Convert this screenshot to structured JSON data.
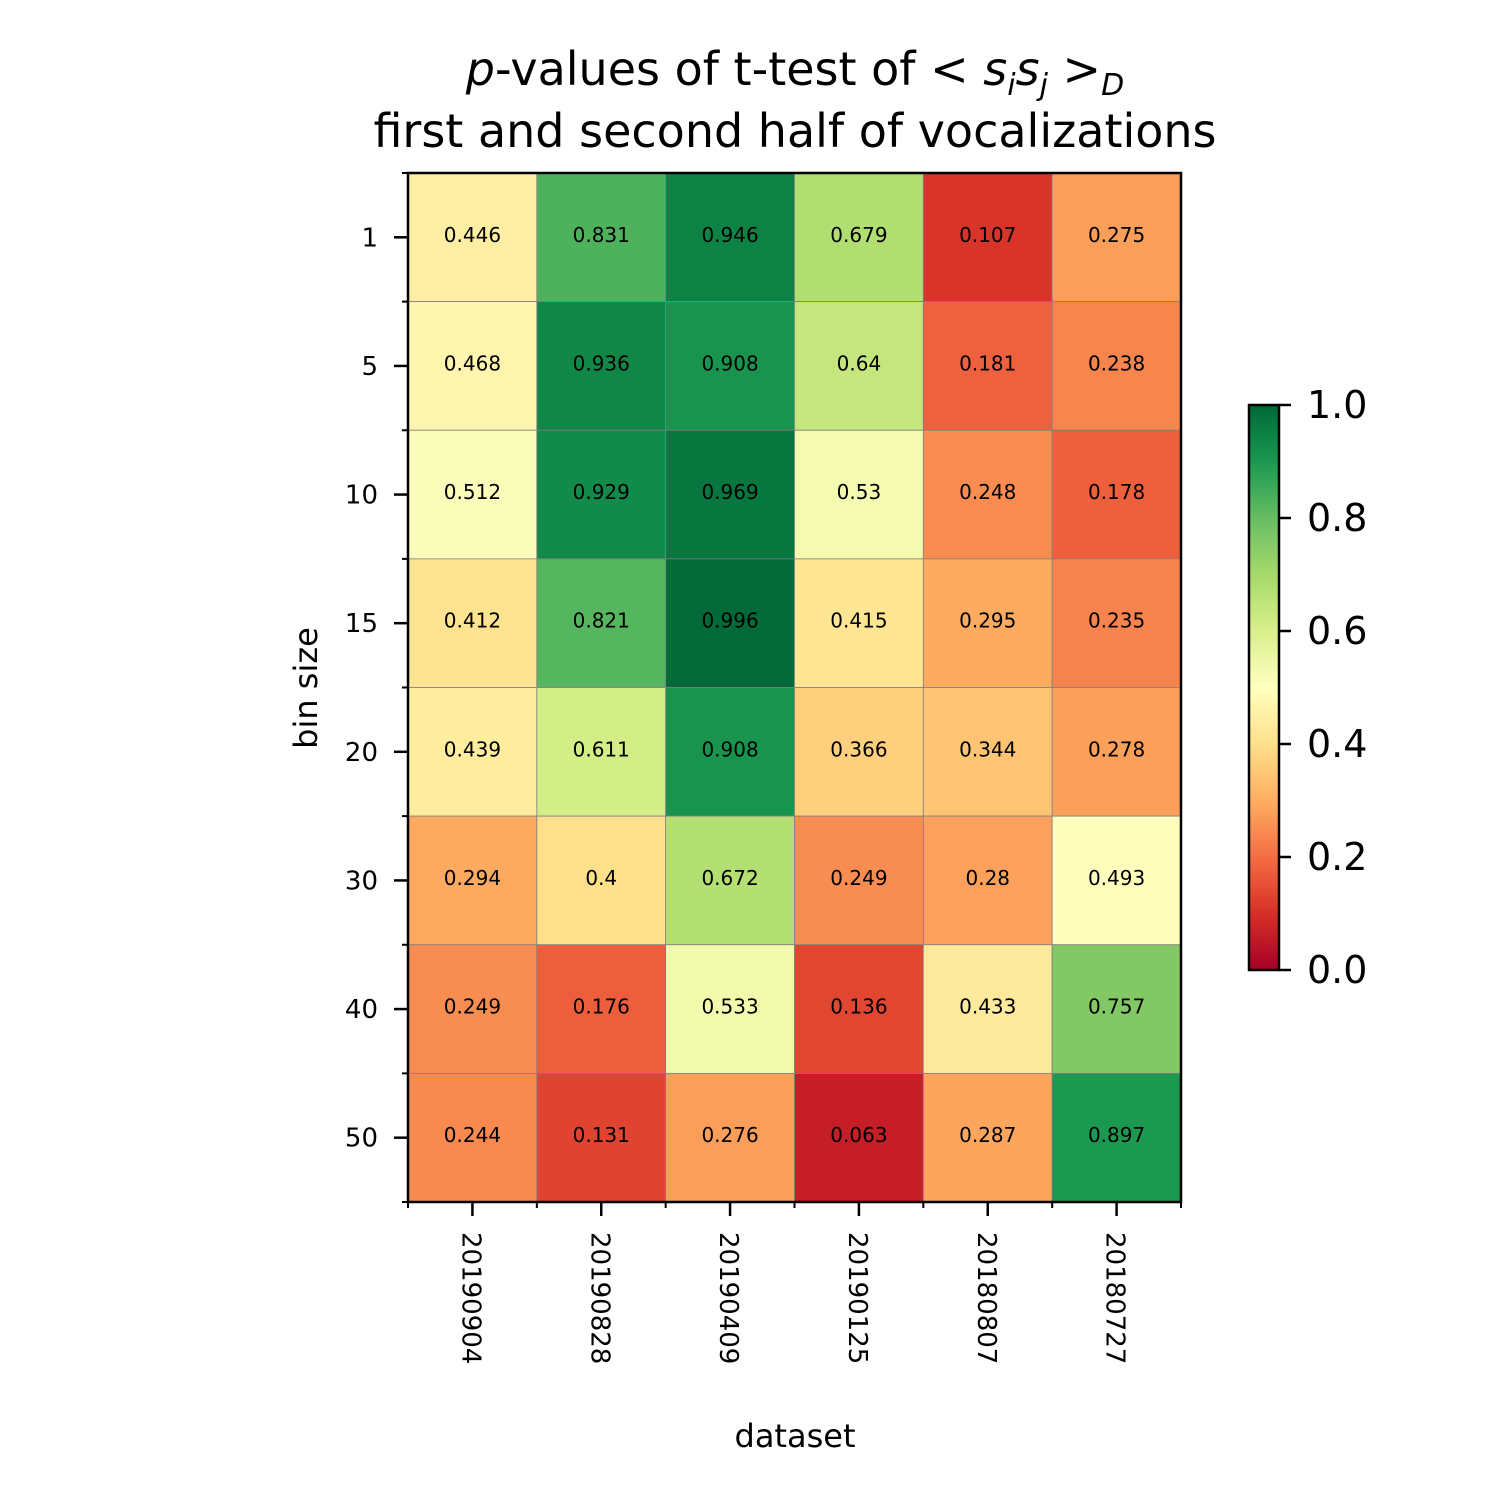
{
  "chart_data": {
    "type": "heatmap",
    "title_line1_prefix": "p",
    "title_line1_text": "-values of t-test of ",
    "title_line1_math": "< s",
    "title_line1_sub_i": "i",
    "title_line1_s2": "s",
    "title_line1_sub_j": "j",
    "title_line1_gt": " >",
    "title_line1_sub_D": "D",
    "title_line2": "first and second half of vocalizations",
    "xlabel": "dataset",
    "ylabel": "bin size",
    "x_categories": [
      "20190904",
      "20190828",
      "20190409",
      "20190125",
      "20180807",
      "20180727"
    ],
    "y_categories": [
      "1",
      "5",
      "10",
      "15",
      "20",
      "30",
      "40",
      "50"
    ],
    "values": [
      [
        0.446,
        0.831,
        0.946,
        0.679,
        0.107,
        0.275
      ],
      [
        0.468,
        0.936,
        0.908,
        0.64,
        0.181,
        0.238
      ],
      [
        0.512,
        0.929,
        0.969,
        0.53,
        0.248,
        0.178
      ],
      [
        0.412,
        0.821,
        0.996,
        0.415,
        0.295,
        0.235
      ],
      [
        0.439,
        0.611,
        0.908,
        0.366,
        0.344,
        0.278
      ],
      [
        0.294,
        0.4,
        0.672,
        0.249,
        0.28,
        0.493
      ],
      [
        0.249,
        0.176,
        0.533,
        0.136,
        0.433,
        0.757
      ],
      [
        0.244,
        0.131,
        0.276,
        0.063,
        0.287,
        0.897
      ]
    ],
    "colormap": "RdYlGn",
    "vmin": 0.0,
    "vmax": 1.0,
    "colorbar_ticks": [
      "0.0",
      "0.2",
      "0.4",
      "0.6",
      "0.8",
      "1.0"
    ],
    "grid": true,
    "colors": {
      "cell_border": "#808080",
      "axes": "#000000"
    }
  }
}
